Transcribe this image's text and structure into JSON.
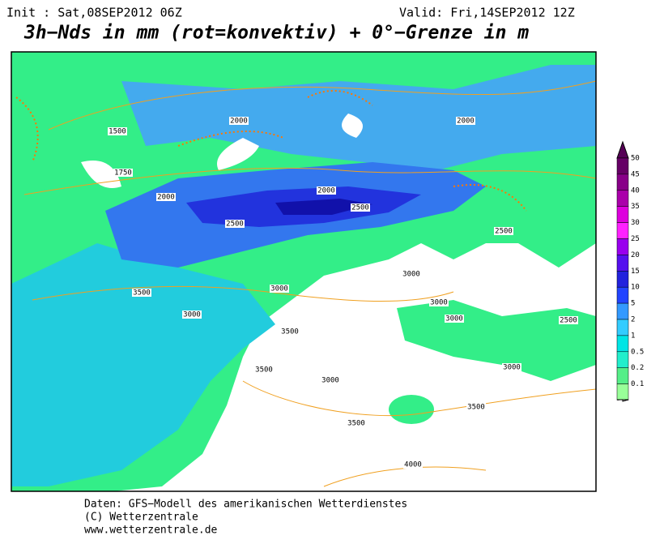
{
  "header": {
    "init": "Init : Sat,08SEP2012 06Z",
    "valid": "Valid: Fri,14SEP2012 12Z",
    "title": "3h−Nds in mm (rot=konvektiv) + 0°−Grenze in m"
  },
  "legend": {
    "levels": [
      50,
      45,
      40,
      35,
      30,
      25,
      20,
      15,
      10,
      5,
      2,
      1,
      0.5,
      0.2,
      0.1
    ]
  },
  "contour_labels": [
    1500,
    1750,
    2000,
    2000,
    2000,
    2000,
    2500,
    2500,
    2500,
    2500,
    3500,
    3000,
    3000,
    3000,
    3000,
    3000,
    3000,
    3500,
    3500,
    3000,
    3500,
    3500,
    4000
  ],
  "footer": [
    "Daten: GFS−Modell des amerikanischen Wetterdienstes",
    "(C) Wetterzentrale",
    "www.wetterzentrale.de"
  ]
}
